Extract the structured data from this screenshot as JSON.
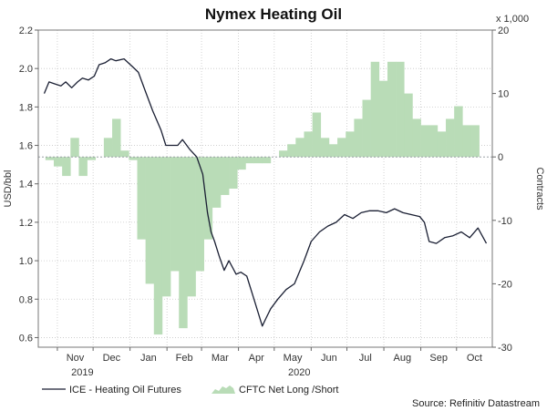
{
  "chart_data": {
    "type": "line",
    "title": "Nymex Heating Oil",
    "ylabel_left": "USD/bbl",
    "ylabel_right": "Contracts",
    "right_axis_multiplier": "x 1,000",
    "ylim_left": [
      0.55,
      2.2
    ],
    "ylim_right": [
      -30,
      20
    ],
    "left_ticks": [
      "2.2",
      "2.0",
      "1.8",
      "1.6",
      "1.4",
      "1.2",
      "1.0",
      "0.8",
      "0.6"
    ],
    "right_ticks": [
      "20",
      "10",
      "0",
      "-10",
      "-20",
      "-30"
    ],
    "x_month_labels": [
      "Nov",
      "Dec",
      "Jan",
      "Feb",
      "Mar",
      "Apr",
      "May",
      "Jun",
      "Jul",
      "Aug",
      "Sep",
      "Oct"
    ],
    "x_year_labels": [
      "2019",
      "2020"
    ],
    "grid": true,
    "legend_position": "bottom-left",
    "source": "Source: Refinitiv Datastream",
    "series": [
      {
        "name": "ICE - Heating Oil Futures",
        "axis": "left",
        "color": "#1a1f33",
        "x": [
          "2019-10-21",
          "2019-10-25",
          "2019-10-30",
          "2019-11-04",
          "2019-11-08",
          "2019-11-13",
          "2019-11-18",
          "2019-11-22",
          "2019-11-27",
          "2019-12-02",
          "2019-12-06",
          "2019-12-11",
          "2019-12-16",
          "2019-12-20",
          "2019-12-27",
          "2020-01-03",
          "2020-01-08",
          "2020-01-14",
          "2020-01-20",
          "2020-01-27",
          "2020-01-31",
          "2020-02-05",
          "2020-02-10",
          "2020-02-14",
          "2020-02-20",
          "2020-02-26",
          "2020-03-02",
          "2020-03-06",
          "2020-03-09",
          "2020-03-12",
          "2020-03-16",
          "2020-03-20",
          "2020-03-24",
          "2020-03-30",
          "2020-04-03",
          "2020-04-08",
          "2020-04-14",
          "2020-04-21",
          "2020-04-24",
          "2020-04-28",
          "2020-05-04",
          "2020-05-11",
          "2020-05-18",
          "2020-05-26",
          "2020-06-01",
          "2020-06-08",
          "2020-06-15",
          "2020-06-22",
          "2020-06-29",
          "2020-07-06",
          "2020-07-13",
          "2020-07-20",
          "2020-07-27",
          "2020-08-03",
          "2020-08-10",
          "2020-08-17",
          "2020-08-24",
          "2020-08-31",
          "2020-09-04",
          "2020-09-08",
          "2020-09-14",
          "2020-09-21",
          "2020-09-28",
          "2020-10-05",
          "2020-10-12",
          "2020-10-19",
          "2020-10-26"
        ],
        "values": [
          1.87,
          1.93,
          1.92,
          1.91,
          1.93,
          1.9,
          1.93,
          1.95,
          1.94,
          1.96,
          2.02,
          2.03,
          2.05,
          2.04,
          2.05,
          2.01,
          1.98,
          1.88,
          1.78,
          1.68,
          1.6,
          1.6,
          1.6,
          1.63,
          1.58,
          1.54,
          1.45,
          1.25,
          1.15,
          1.1,
          1.02,
          0.95,
          1.0,
          0.93,
          0.94,
          0.92,
          0.8,
          0.66,
          0.7,
          0.75,
          0.8,
          0.85,
          0.88,
          1.0,
          1.1,
          1.15,
          1.18,
          1.2,
          1.24,
          1.22,
          1.25,
          1.26,
          1.26,
          1.25,
          1.27,
          1.25,
          1.24,
          1.23,
          1.2,
          1.1,
          1.09,
          1.12,
          1.13,
          1.15,
          1.12,
          1.17,
          1.09
        ]
      },
      {
        "name": "CFTC Net Long /Short",
        "axis": "right",
        "color": "#b9dcb7",
        "x": [
          "2019-10-22",
          "2019-10-29",
          "2019-11-05",
          "2019-11-12",
          "2019-11-19",
          "2019-11-26",
          "2019-12-03",
          "2019-12-10",
          "2019-12-17",
          "2019-12-24",
          "2019-12-31",
          "2020-01-07",
          "2020-01-14",
          "2020-01-21",
          "2020-01-28",
          "2020-02-04",
          "2020-02-11",
          "2020-02-18",
          "2020-02-25",
          "2020-03-03",
          "2020-03-10",
          "2020-03-17",
          "2020-03-24",
          "2020-03-31",
          "2020-04-07",
          "2020-04-14",
          "2020-04-21",
          "2020-04-28",
          "2020-05-05",
          "2020-05-12",
          "2020-05-19",
          "2020-05-26",
          "2020-06-02",
          "2020-06-09",
          "2020-06-16",
          "2020-06-23",
          "2020-06-30",
          "2020-07-07",
          "2020-07-14",
          "2020-07-21",
          "2020-07-28",
          "2020-08-04",
          "2020-08-11",
          "2020-08-18",
          "2020-08-25",
          "2020-09-01",
          "2020-09-08",
          "2020-09-15",
          "2020-09-22",
          "2020-09-29",
          "2020-10-06",
          "2020-10-13",
          "2020-10-20",
          "2020-10-27"
        ],
        "values": [
          -0.5,
          -1.5,
          -3,
          3,
          -3,
          -0.5,
          0,
          3,
          6,
          1,
          -0.5,
          -13,
          -20,
          -28,
          -22,
          -18,
          -27,
          -22,
          -18,
          -13,
          -8,
          -6,
          -5,
          -2,
          -1,
          -1,
          -1,
          0,
          1,
          2,
          3,
          4,
          7,
          3,
          2,
          3,
          4,
          6,
          9,
          15,
          12,
          15,
          15,
          10,
          6,
          5,
          5,
          4,
          6,
          8,
          5,
          5,
          0,
          0
        ]
      }
    ]
  }
}
